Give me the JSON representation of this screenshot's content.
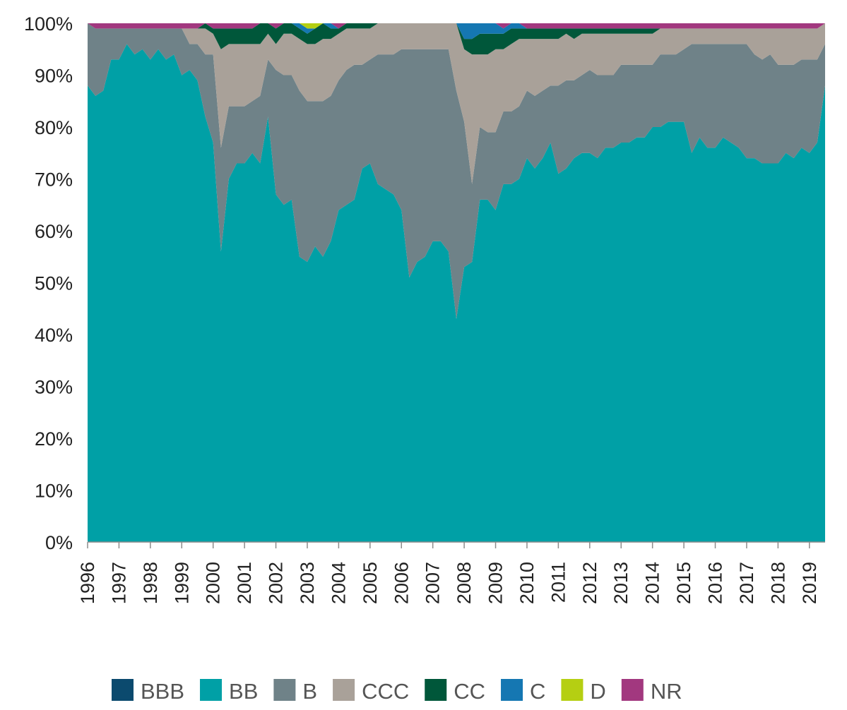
{
  "chart_data": {
    "type": "area",
    "stacked": true,
    "percent": true,
    "title": "",
    "xlabel": "",
    "ylabel": "",
    "ylim": [
      0,
      100
    ],
    "y_ticks": [
      "0%",
      "10%",
      "20%",
      "30%",
      "40%",
      "50%",
      "60%",
      "70%",
      "80%",
      "90%",
      "100%"
    ],
    "x_ticks": [
      "1996",
      "1997",
      "1998",
      "1999",
      "2000",
      "2001",
      "2002",
      "2003",
      "2004",
      "2005",
      "2006",
      "2007",
      "2008",
      "2009",
      "2010",
      "2011",
      "2012",
      "2013",
      "2014",
      "2015",
      "2016",
      "2017",
      "2018",
      "2019"
    ],
    "grid": false,
    "legend_position": "bottom",
    "x": [
      1996.0,
      1996.25,
      1996.5,
      1996.75,
      1997.0,
      1997.25,
      1997.5,
      1997.75,
      1998.0,
      1998.25,
      1998.5,
      1998.75,
      1999.0,
      1999.25,
      1999.5,
      1999.75,
      2000.0,
      2000.25,
      2000.5,
      2000.75,
      2001.0,
      2001.25,
      2001.5,
      2001.75,
      2002.0,
      2002.25,
      2002.5,
      2002.75,
      2003.0,
      2003.25,
      2003.5,
      2003.75,
      2004.0,
      2004.25,
      2004.5,
      2004.75,
      2005.0,
      2005.25,
      2005.5,
      2005.75,
      2006.0,
      2006.25,
      2006.5,
      2006.75,
      2007.0,
      2007.25,
      2007.5,
      2007.75,
      2008.0,
      2008.25,
      2008.5,
      2008.75,
      2009.0,
      2009.25,
      2009.5,
      2009.75,
      2010.0,
      2010.25,
      2010.5,
      2010.75,
      2011.0,
      2011.25,
      2011.5,
      2011.75,
      2012.0,
      2012.25,
      2012.5,
      2012.75,
      2013.0,
      2013.25,
      2013.5,
      2013.75,
      2014.0,
      2014.25,
      2014.5,
      2014.75,
      2015.0,
      2015.25,
      2015.5,
      2015.75,
      2016.0,
      2016.25,
      2016.5,
      2016.75,
      2017.0,
      2017.25,
      2017.5,
      2017.75,
      2018.0,
      2018.25,
      2018.5,
      2018.75,
      2019.0,
      2019.25,
      2019.5
    ],
    "series": [
      {
        "name": "BBB",
        "color": "#0b4a6e",
        "values": [
          0,
          0,
          0,
          0,
          0,
          0,
          0,
          0,
          0,
          0,
          0,
          0,
          0,
          0,
          0,
          0,
          0,
          0,
          0,
          0,
          0,
          0,
          0,
          0,
          0,
          0,
          0,
          0,
          0,
          0,
          0,
          0,
          0,
          0,
          0,
          0,
          0,
          0,
          0,
          0,
          0,
          0,
          0,
          0,
          0,
          0,
          0,
          0,
          0,
          0,
          0,
          0,
          0,
          0,
          0,
          0,
          0,
          0,
          0,
          0,
          0,
          0,
          0,
          0,
          0,
          0,
          0,
          0,
          0,
          0,
          0,
          0,
          0,
          0,
          0,
          0,
          0,
          0,
          0,
          0,
          0,
          0,
          0,
          0,
          0,
          0,
          0,
          0,
          0,
          0,
          0,
          0,
          0,
          0,
          0
        ]
      },
      {
        "name": "BB",
        "color": "#00a0a6",
        "values": [
          88,
          86,
          87,
          93,
          93,
          96,
          94,
          95,
          93,
          95,
          93,
          94,
          90,
          91,
          89,
          82,
          77,
          56,
          70,
          73,
          73,
          75,
          73,
          82,
          67,
          65,
          66,
          55,
          54,
          57,
          55,
          58,
          64,
          65,
          66,
          72,
          73,
          69,
          68,
          67,
          64,
          51,
          54,
          55,
          58,
          58,
          56,
          43,
          53,
          54,
          66,
          66,
          64,
          69,
          69,
          70,
          74,
          72,
          74,
          77,
          71,
          72,
          74,
          75,
          75,
          74,
          76,
          76,
          77,
          77,
          78,
          78,
          80,
          80,
          81,
          81,
          81,
          75,
          78,
          76,
          76,
          78,
          77,
          76,
          74,
          74,
          73,
          73,
          73,
          75,
          74,
          76,
          75,
          77,
          88
        ]
      },
      {
        "name": "B",
        "color": "#6f8288",
        "values": [
          12,
          13,
          12,
          6,
          6,
          3,
          5,
          4,
          6,
          4,
          6,
          5,
          9,
          5,
          7,
          12,
          17,
          20,
          14,
          11,
          11,
          10,
          13,
          11,
          24,
          25,
          24,
          32,
          31,
          28,
          30,
          28,
          25,
          26,
          26,
          20,
          20,
          25,
          26,
          27,
          31,
          44,
          41,
          40,
          37,
          37,
          39,
          44,
          28,
          15,
          14,
          13,
          15,
          14,
          14,
          14,
          13,
          14,
          13,
          11,
          17,
          17,
          15,
          15,
          16,
          16,
          14,
          14,
          15,
          15,
          14,
          14,
          12,
          14,
          13,
          13,
          14,
          21,
          18,
          20,
          20,
          18,
          19,
          20,
          22,
          20,
          20,
          21,
          19,
          17,
          18,
          17,
          18,
          16,
          8
        ]
      },
      {
        "name": "CCC",
        "color": "#a9a199",
        "values": [
          0,
          0,
          0,
          0,
          0,
          0,
          0,
          0,
          0,
          0,
          0,
          0,
          0,
          3,
          3,
          5,
          4,
          19,
          12,
          12,
          12,
          11,
          10,
          5,
          5,
          8,
          8,
          10,
          11,
          11,
          12,
          11,
          9,
          8,
          7,
          7,
          6,
          6,
          6,
          6,
          5,
          5,
          5,
          5,
          5,
          5,
          5,
          13,
          14,
          25,
          14,
          15,
          16,
          12,
          13,
          13,
          10,
          11,
          10,
          9,
          9,
          9,
          8,
          8,
          7,
          8,
          8,
          8,
          6,
          6,
          6,
          6,
          6,
          5,
          5,
          5,
          4,
          3,
          3,
          3,
          3,
          3,
          3,
          3,
          3,
          5,
          6,
          5,
          7,
          7,
          7,
          6,
          6,
          6,
          4
        ]
      },
      {
        "name": "CC",
        "color": "#00573a",
        "values": [
          0,
          0,
          0,
          0,
          0,
          0,
          0,
          0,
          0,
          0,
          0,
          0,
          0,
          0,
          0,
          1,
          1,
          4,
          3,
          3,
          3,
          3,
          4,
          2,
          3,
          2,
          2,
          2,
          2,
          3,
          3,
          2,
          1,
          1,
          1,
          1,
          1,
          0,
          0,
          0,
          0,
          0,
          0,
          0,
          0,
          0,
          0,
          0,
          2,
          3,
          4,
          4,
          3,
          3,
          3,
          2,
          2,
          2,
          2,
          2,
          2,
          1,
          2,
          1,
          1,
          1,
          1,
          1,
          1,
          1,
          1,
          1,
          1,
          0,
          0,
          0,
          0,
          0,
          0,
          0,
          0,
          0,
          0,
          0,
          0,
          0,
          0,
          0,
          0,
          0,
          0,
          0,
          0,
          0,
          0
        ]
      },
      {
        "name": "C",
        "color": "#1577b2",
        "values": [
          0,
          0,
          0,
          0,
          0,
          0,
          0,
          0,
          0,
          0,
          0,
          0,
          0,
          0,
          0,
          0,
          0,
          0,
          0,
          0,
          0,
          0,
          0,
          0,
          0,
          0,
          0,
          1,
          1,
          0,
          0,
          1,
          0,
          0,
          0,
          0,
          0,
          0,
          0,
          0,
          0,
          0,
          0,
          0,
          0,
          0,
          0,
          0,
          3,
          3,
          2,
          2,
          2,
          1,
          1,
          1,
          0,
          0,
          0,
          0,
          0,
          0,
          0,
          0,
          0,
          0,
          0,
          0,
          0,
          0,
          0,
          0,
          0,
          0,
          0,
          0,
          0,
          0,
          0,
          0,
          0,
          0,
          0,
          0,
          0,
          0,
          0,
          0,
          0,
          0,
          0,
          0,
          0,
          0,
          0
        ]
      },
      {
        "name": "D",
        "color": "#b5cf12",
        "values": [
          0,
          0,
          0,
          0,
          0,
          0,
          0,
          0,
          0,
          0,
          0,
          0,
          0,
          0,
          0,
          0,
          0,
          0,
          0,
          0,
          0,
          0,
          0,
          0,
          0,
          0,
          0,
          0,
          1,
          1,
          0,
          0,
          0,
          0,
          0,
          0,
          0,
          0,
          0,
          0,
          0,
          0,
          0,
          0,
          0,
          0,
          0,
          0,
          0,
          0,
          0,
          0,
          0,
          0,
          0,
          0,
          0,
          0,
          0,
          0,
          0,
          0,
          0,
          0,
          0,
          0,
          0,
          0,
          0,
          0,
          0,
          0,
          0,
          0,
          0,
          0,
          0,
          0,
          0,
          0,
          0,
          0,
          0,
          0,
          0,
          0,
          0,
          0,
          0,
          0,
          0,
          0,
          0,
          0,
          0
        ]
      },
      {
        "name": "NR",
        "color": "#a2387f",
        "values": [
          0,
          1,
          1,
          1,
          1,
          1,
          1,
          1,
          1,
          1,
          1,
          1,
          1,
          1,
          1,
          0,
          1,
          1,
          1,
          1,
          1,
          1,
          0,
          0,
          1,
          0,
          0,
          0,
          0,
          0,
          0,
          0,
          1,
          0,
          0,
          0,
          0,
          0,
          0,
          0,
          0,
          0,
          0,
          0,
          0,
          0,
          0,
          0,
          0,
          0,
          0,
          0,
          0,
          1,
          0,
          0,
          1,
          1,
          1,
          1,
          1,
          1,
          1,
          1,
          1,
          1,
          1,
          1,
          1,
          1,
          1,
          1,
          1,
          1,
          1,
          1,
          1,
          1,
          1,
          1,
          1,
          1,
          1,
          1,
          1,
          1,
          1,
          1,
          1,
          1,
          1,
          1,
          1,
          1,
          0
        ]
      }
    ]
  }
}
